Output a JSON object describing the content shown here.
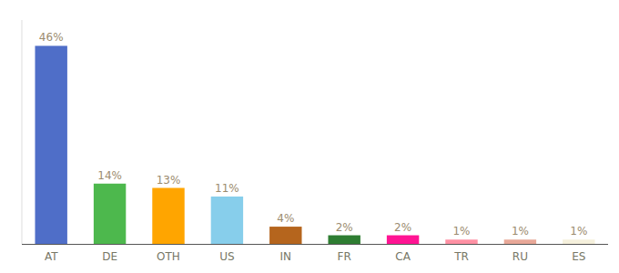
{
  "chart_data": {
    "type": "bar",
    "categories": [
      "AT",
      "DE",
      "OTH",
      "US",
      "IN",
      "FR",
      "CA",
      "TR",
      "RU",
      "ES"
    ],
    "values": [
      46,
      14,
      13,
      11,
      4,
      2,
      2,
      1,
      1,
      1
    ],
    "value_labels": [
      "46%",
      "14%",
      "13%",
      "11%",
      "4%",
      "2%",
      "2%",
      "1%",
      "1%",
      "1%"
    ],
    "colors": [
      "#4F6EC8",
      "#4DB84D",
      "#FFA500",
      "#87CEEB",
      "#B5651D",
      "#2E7D32",
      "#FF1493",
      "#FF91A4",
      "#E8A898",
      "#F5F0DC"
    ],
    "ylim": [
      0,
      52
    ],
    "data_labels": true,
    "tick_labels": "x"
  }
}
